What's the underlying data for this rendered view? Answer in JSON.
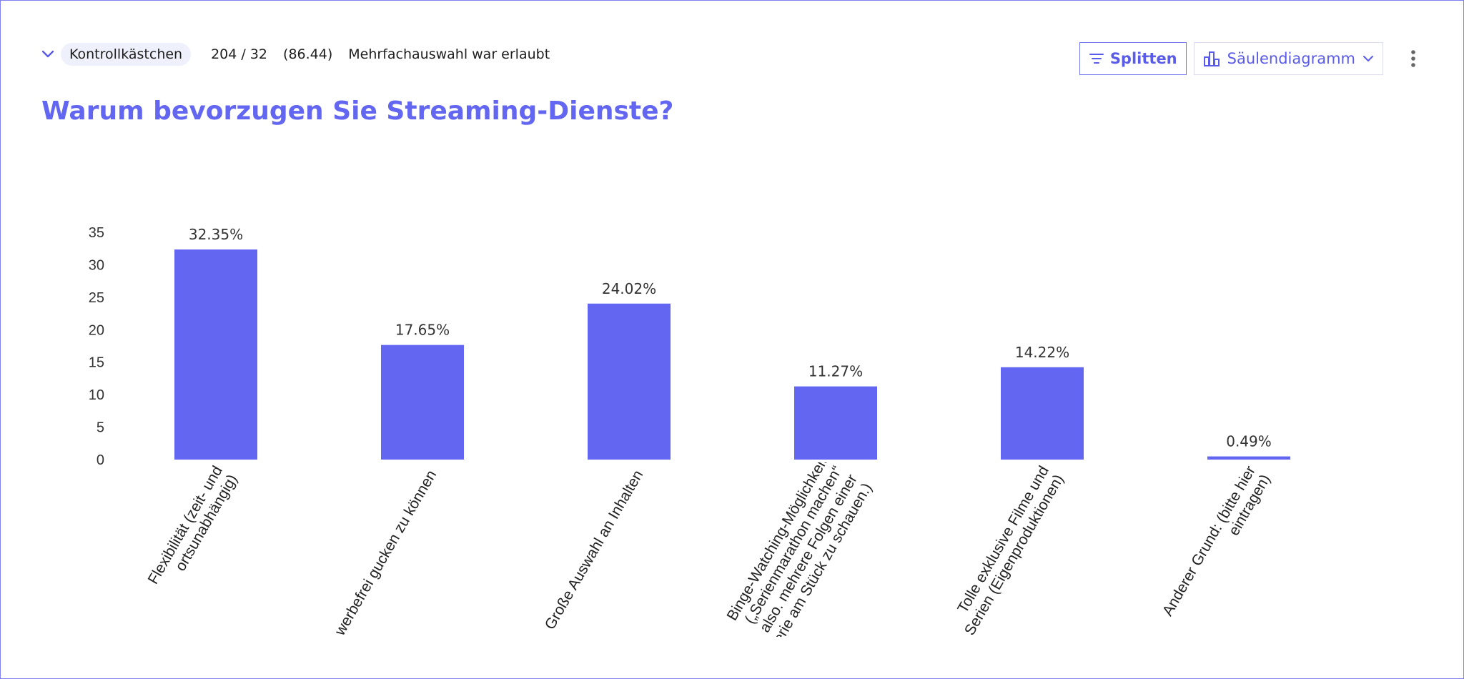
{
  "header": {
    "question_type": "Kontrollkästchen",
    "responses": "204 / 32",
    "percent": "(86.44)",
    "note": "Mehrfachauswahl war erlaubt",
    "split_label": "Splitten",
    "chart_type_label": "Säulendiagramm"
  },
  "question": "Warum bevorzugen Sie Streaming-Dienste?",
  "colors": {
    "accent": "#6366f1",
    "bar": "#6366f1"
  },
  "icons": [
    "chevron-down-icon",
    "filter-icon",
    "bar-chart-icon",
    "chevron-down-icon",
    "more-vertical-icon"
  ],
  "chart_data": {
    "type": "bar",
    "categories": [
      [
        "Flexibilität (zeit- und",
        "ortsunabhängig)"
      ],
      [
        "Um werbefrei gucken zu können"
      ],
      [
        "Große Auswahl an Inhalten"
      ],
      [
        "Binge-Watching-Möglichkeit",
        "(„Serienmarathon machen“",
        "also. mehrere Folgen einer",
        "Serie am Stück zu schauen.)"
      ],
      [
        "Tolle exklusive Filme und",
        "Serien (Eigenproduktionen)"
      ],
      [
        "Anderer Grund: (bitte hier",
        "eintragen)"
      ]
    ],
    "values": [
      32.35,
      17.65,
      24.02,
      11.27,
      14.22,
      0.49
    ],
    "value_labels": [
      "32.35%",
      "17.65%",
      "24.02%",
      "11.27%",
      "14.22%",
      "0.49%"
    ],
    "yticks": [
      0,
      5,
      10,
      15,
      20,
      25,
      30,
      35
    ],
    "ylim": [
      0,
      35
    ],
    "grid": false,
    "legend": "none"
  }
}
